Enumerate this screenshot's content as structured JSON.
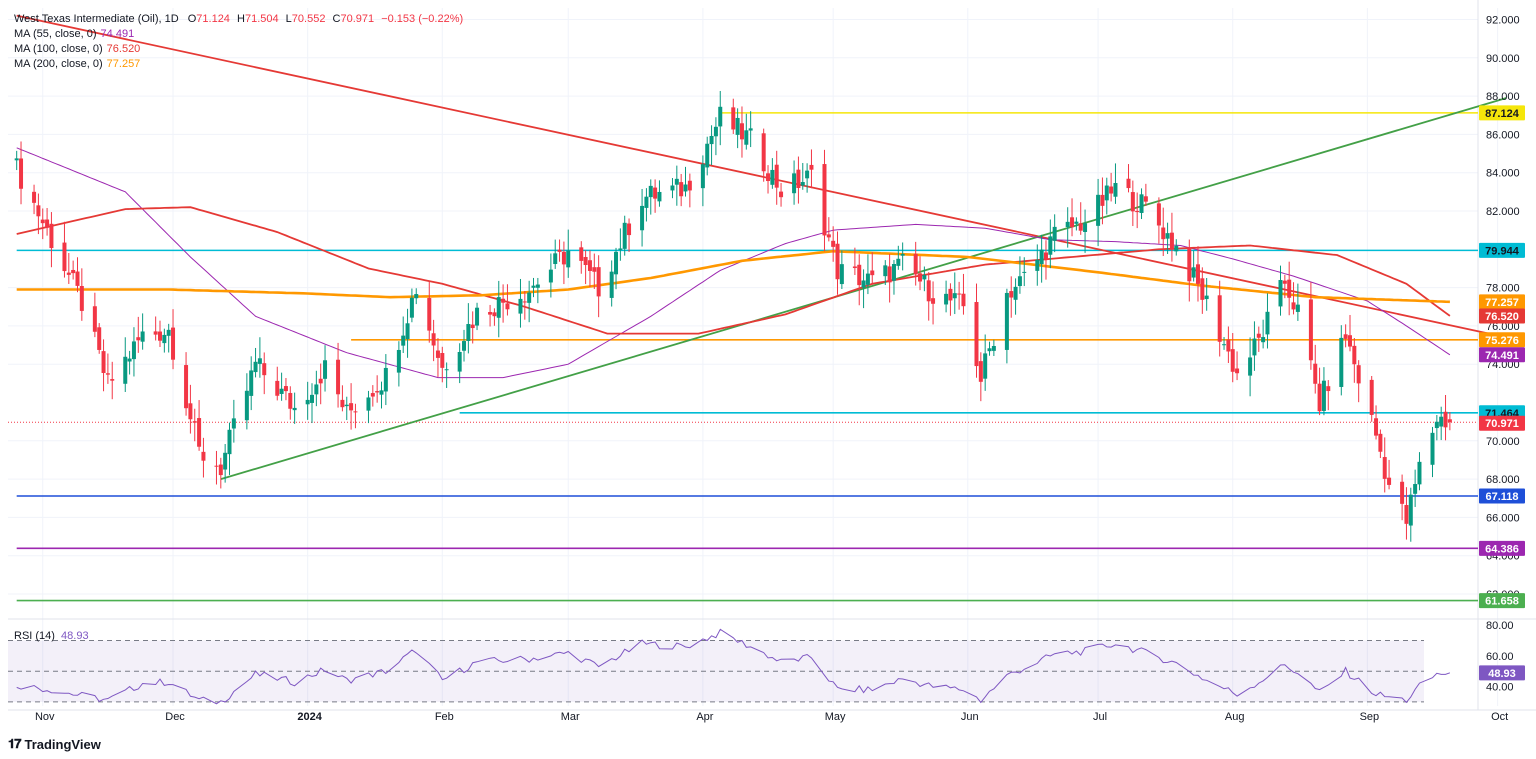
{
  "header": {
    "symbol": "West Texas Intermediate (Oil), 1D",
    "open_label": "O",
    "open": "71.124",
    "high_label": "H",
    "high": "71.504",
    "low_label": "L",
    "low": "70.552",
    "close_label": "C",
    "close": "70.971",
    "change": "−0.153 (−0.22%)",
    "ma55_name": "MA (55, close, 0)",
    "ma55_value": "74.491",
    "ma100_name": "MA (100, close, 0)",
    "ma100_value": "76.520",
    "ma200_name": "MA (200, close, 0)",
    "ma200_value": "77.257"
  },
  "rsi": {
    "name": "RSI (14)",
    "value": "48.93"
  },
  "branding": {
    "logo_text": "TradingView",
    "logo_icon": "tradingview-logo-icon"
  },
  "colors": {
    "up": "#089981",
    "down": "#f23645",
    "ma55": "#9c27b0",
    "ma100": "#e53935",
    "ma200": "#ff9800",
    "trend_red": "#e53935",
    "trend_green": "#43a047",
    "cyan": "#00bcd4",
    "blue": "#1e4fd8",
    "purple": "#9c27b0",
    "yellow": "#f5e60a",
    "green": "#4caf50"
  },
  "chart_data": [
    {
      "type": "candlestick",
      "title": "West Texas Intermediate (Oil), 1D",
      "ylim": [
        60.8,
        92.6
      ],
      "y_ticks": [
        "92.000",
        "90.000",
        "88.000",
        "86.000",
        "84.000",
        "82.000",
        "78.000",
        "76.000",
        "74.000",
        "70.000",
        "68.000",
        "66.000",
        "64.000",
        "62.000"
      ],
      "x_tick_labels": [
        "Nov",
        "Dec",
        "2024",
        "Feb",
        "Mar",
        "Apr",
        "May",
        "Jun",
        "Jul",
        "Aug",
        "Sep",
        "Oct"
      ],
      "x_tick_dates": [
        "2023-11-01",
        "2023-12-01",
        "2024-01-01",
        "2024-02-01",
        "2024-03-01",
        "2024-04-01",
        "2024-05-01",
        "2024-06-01",
        "2024-07-01",
        "2024-08-01",
        "2024-09-01",
        "2024-10-01"
      ],
      "close_anchors": [
        [
          "2023-10-26",
          84.2
        ],
        [
          "2023-11-03",
          80.5
        ],
        [
          "2023-11-10",
          77.2
        ],
        [
          "2023-11-16",
          72.9
        ],
        [
          "2023-11-24",
          75.5
        ],
        [
          "2023-11-30",
          75.8
        ],
        [
          "2023-12-07",
          69.4
        ],
        [
          "2023-12-12",
          68.6
        ],
        [
          "2023-12-20",
          74.0
        ],
        [
          "2023-12-29",
          71.7
        ],
        [
          "2024-01-05",
          73.8
        ],
        [
          "2024-01-10",
          71.4
        ],
        [
          "2024-01-19",
          73.4
        ],
        [
          "2024-01-26",
          78.0
        ],
        [
          "2024-02-01",
          73.8
        ],
        [
          "2024-02-09",
          76.7
        ],
        [
          "2024-02-21",
          77.9
        ],
        [
          "2024-03-01",
          79.9
        ],
        [
          "2024-03-08",
          78.0
        ],
        [
          "2024-03-18",
          82.7
        ],
        [
          "2024-03-28",
          83.2
        ],
        [
          "2024-04-05",
          86.9
        ],
        [
          "2024-04-12",
          85.7
        ],
        [
          "2024-04-19",
          83.1
        ],
        [
          "2024-04-26",
          83.8
        ],
        [
          "2024-05-02",
          78.9
        ],
        [
          "2024-05-10",
          78.3
        ],
        [
          "2024-05-17",
          79.2
        ],
        [
          "2024-05-24",
          77.7
        ],
        [
          "2024-05-31",
          77.0
        ],
        [
          "2024-06-04",
          73.3
        ],
        [
          "2024-06-10",
          77.7
        ],
        [
          "2024-06-14",
          78.5
        ],
        [
          "2024-06-21",
          80.7
        ],
        [
          "2024-06-28",
          81.5
        ],
        [
          "2024-07-05",
          83.2
        ],
        [
          "2024-07-12",
          82.2
        ],
        [
          "2024-07-19",
          80.1
        ],
        [
          "2024-07-26",
          77.2
        ],
        [
          "2024-08-02",
          73.5
        ],
        [
          "2024-08-07",
          75.2
        ],
        [
          "2024-08-13",
          78.3
        ],
        [
          "2024-08-16",
          76.7
        ],
        [
          "2024-08-21",
          71.9
        ],
        [
          "2024-08-27",
          75.5
        ],
        [
          "2024-09-03",
          70.3
        ],
        [
          "2024-09-06",
          67.7
        ],
        [
          "2024-09-10",
          65.8
        ],
        [
          "2024-09-13",
          68.6
        ],
        [
          "2024-09-17",
          71.2
        ],
        [
          "2024-09-20",
          70.971
        ]
      ],
      "moving_averages": [
        {
          "name": "MA (55, close, 0)",
          "last": 74.491,
          "anchors": [
            [
              "2023-10-26",
              85.3
            ],
            [
              "2023-11-20",
              83.0
            ],
            [
              "2023-12-05",
              79.6
            ],
            [
              "2023-12-20",
              76.5
            ],
            [
              "2024-01-10",
              74.6
            ],
            [
              "2024-01-31",
              73.3
            ],
            [
              "2024-02-15",
              73.3
            ],
            [
              "2024-03-01",
              74.0
            ],
            [
              "2024-03-20",
              76.5
            ],
            [
              "2024-04-05",
              78.9
            ],
            [
              "2024-04-20",
              80.3
            ],
            [
              "2024-05-01",
              81.0
            ],
            [
              "2024-05-20",
              81.3
            ],
            [
              "2024-06-05",
              81.1
            ],
            [
              "2024-06-20",
              80.5
            ],
            [
              "2024-07-05",
              80.4
            ],
            [
              "2024-07-20",
              80.2
            ],
            [
              "2024-08-01",
              79.5
            ],
            [
              "2024-08-15",
              78.6
            ],
            [
              "2024-09-01",
              77.3
            ],
            [
              "2024-09-10",
              76.0
            ],
            [
              "2024-09-20",
              74.491
            ]
          ]
        },
        {
          "name": "MA (100, close, 0)",
          "last": 76.52,
          "anchors": [
            [
              "2023-10-26",
              80.8
            ],
            [
              "2023-11-20",
              82.1
            ],
            [
              "2023-12-05",
              82.2
            ],
            [
              "2023-12-25",
              80.9
            ],
            [
              "2024-01-15",
              79.0
            ],
            [
              "2024-02-01",
              78.2
            ],
            [
              "2024-02-20",
              77.0
            ],
            [
              "2024-03-10",
              75.6
            ],
            [
              "2024-03-31",
              75.6
            ],
            [
              "2024-04-20",
              76.6
            ],
            [
              "2024-05-10",
              78.2
            ],
            [
              "2024-06-05",
              79.2
            ],
            [
              "2024-06-25",
              79.6
            ],
            [
              "2024-07-15",
              80.0
            ],
            [
              "2024-08-05",
              80.2
            ],
            [
              "2024-08-25",
              79.7
            ],
            [
              "2024-09-10",
              78.2
            ],
            [
              "2024-09-20",
              76.52
            ]
          ]
        },
        {
          "name": "MA (200, close, 0)",
          "last": 77.257,
          "anchors": [
            [
              "2023-10-26",
              77.9
            ],
            [
              "2023-11-30",
              77.9
            ],
            [
              "2023-12-31",
              77.7
            ],
            [
              "2024-01-20",
              77.5
            ],
            [
              "2024-02-10",
              77.6
            ],
            [
              "2024-03-01",
              77.9
            ],
            [
              "2024-03-20",
              78.5
            ],
            [
              "2024-04-10",
              79.4
            ],
            [
              "2024-05-01",
              79.9
            ],
            [
              "2024-06-01",
              79.6
            ],
            [
              "2024-07-01",
              78.8
            ],
            [
              "2024-07-25",
              78.1
            ],
            [
              "2024-08-20",
              77.5
            ],
            [
              "2024-09-20",
              77.257
            ]
          ]
        }
      ],
      "horizontal_levels": [
        {
          "value": 87.124,
          "label": "87.124",
          "color": "#f5e60a",
          "from": "2024-04-05"
        },
        {
          "value": 79.944,
          "label": "79.944",
          "color": "#00bcd4",
          "from": "2023-10-26"
        },
        {
          "value": 75.276,
          "label": "75.276",
          "color": "#ff9800",
          "from": "2024-01-11"
        },
        {
          "value": 71.464,
          "label": "71.464",
          "color": "#00bcd4",
          "from": "2024-02-05"
        },
        {
          "value": 67.118,
          "label": "67.118",
          "color": "#1e4fd8",
          "from": "2023-10-26"
        },
        {
          "value": 64.386,
          "label": "64.386",
          "color": "#9c27b0",
          "from": "2023-10-26"
        },
        {
          "value": 61.658,
          "label": "61.658",
          "color": "#4caf50",
          "from": "2023-10-26"
        }
      ],
      "last_price": {
        "value": 70.971,
        "label": "70.971",
        "color": "#f23645"
      },
      "ma_badges": [
        {
          "value": 77.257,
          "label": "77.257",
          "color": "#ff9800"
        },
        {
          "value": 76.52,
          "label": "76.520",
          "color": "#e53935"
        },
        {
          "value": 74.491,
          "label": "74.491",
          "color": "#9c27b0"
        }
      ],
      "trendlines": [
        {
          "name": "descending resistance",
          "color": "#e53935",
          "points": [
            [
              "2023-10-26",
              92.2
            ],
            [
              "2024-10-03",
              75.4
            ]
          ]
        },
        {
          "name": "ascending support",
          "color": "#43a047",
          "points": [
            [
              "2023-12-12",
              68.0
            ],
            [
              "2024-10-03",
              87.9
            ]
          ]
        }
      ]
    },
    {
      "type": "line",
      "title": "RSI (14)",
      "ylim": [
        27.3,
        82.1
      ],
      "y_ticks": [
        "80.00",
        "60.00",
        "40.00"
      ],
      "bands": [
        30,
        50,
        70
      ],
      "last": 48.93,
      "anchors": [
        [
          "2023-10-26",
          41
        ],
        [
          "2023-11-03",
          38
        ],
        [
          "2023-11-10",
          34
        ],
        [
          "2023-11-16",
          31
        ],
        [
          "2023-11-24",
          42
        ],
        [
          "2023-11-30",
          43
        ],
        [
          "2023-12-07",
          31
        ],
        [
          "2023-12-12",
          30
        ],
        [
          "2023-12-20",
          48
        ],
        [
          "2023-12-29",
          43
        ],
        [
          "2024-01-05",
          51
        ],
        [
          "2024-01-10",
          44
        ],
        [
          "2024-01-19",
          50
        ],
        [
          "2024-01-26",
          64
        ],
        [
          "2024-02-01",
          44
        ],
        [
          "2024-02-09",
          56
        ],
        [
          "2024-02-21",
          58
        ],
        [
          "2024-03-01",
          62
        ],
        [
          "2024-03-08",
          53
        ],
        [
          "2024-03-18",
          68
        ],
        [
          "2024-03-28",
          66
        ],
        [
          "2024-04-05",
          75
        ],
        [
          "2024-04-12",
          66
        ],
        [
          "2024-04-19",
          56
        ],
        [
          "2024-04-26",
          59
        ],
        [
          "2024-05-02",
          38
        ],
        [
          "2024-05-10",
          38
        ],
        [
          "2024-05-17",
          45
        ],
        [
          "2024-05-24",
          40
        ],
        [
          "2024-05-31",
          38
        ],
        [
          "2024-06-04",
          31
        ],
        [
          "2024-06-10",
          47
        ],
        [
          "2024-06-14",
          52
        ],
        [
          "2024-06-21",
          61
        ],
        [
          "2024-06-28",
          63
        ],
        [
          "2024-07-05",
          68
        ],
        [
          "2024-07-12",
          62
        ],
        [
          "2024-07-19",
          55
        ],
        [
          "2024-07-26",
          44
        ],
        [
          "2024-08-02",
          35
        ],
        [
          "2024-08-07",
          43
        ],
        [
          "2024-08-13",
          54
        ],
        [
          "2024-08-16",
          49
        ],
        [
          "2024-08-21",
          36
        ],
        [
          "2024-08-27",
          50
        ],
        [
          "2024-09-03",
          35
        ],
        [
          "2024-09-06",
          33
        ],
        [
          "2024-09-10",
          31
        ],
        [
          "2024-09-13",
          40
        ],
        [
          "2024-09-17",
          48
        ],
        [
          "2024-09-20",
          48.93
        ]
      ]
    }
  ]
}
